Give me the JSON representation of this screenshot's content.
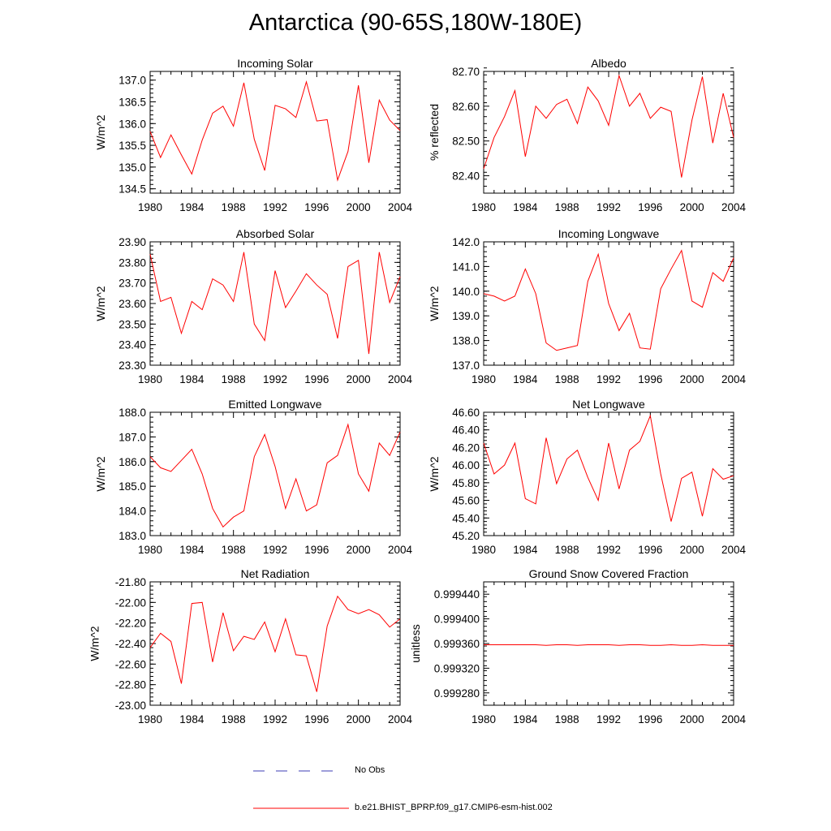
{
  "title": "Antarctica (90-65S,180W-180E)",
  "legend": {
    "items": [
      {
        "label": "No Obs",
        "style": "dashed",
        "color": "#3c3cb4"
      },
      {
        "label": "b.e21.BHIST_BPRP.f09_g17.CMIP6-esm-hist.002",
        "style": "solid",
        "color": "#ff0000"
      }
    ]
  },
  "chart_data": [
    {
      "type": "line",
      "title": "Incoming Solar",
      "ylabel": "W/m^2",
      "xlim": [
        1980,
        2004
      ],
      "ylim": [
        134.4,
        137.2
      ],
      "xticks": [
        "1980",
        "1984",
        "1988",
        "1992",
        "1996",
        "2000",
        "2004"
      ],
      "yticks": [
        "134.5",
        "135.0",
        "135.5",
        "136.0",
        "136.5",
        "137.0"
      ],
      "x": [
        1980,
        1981,
        1982,
        1983,
        1984,
        1985,
        1986,
        1987,
        1988,
        1989,
        1990,
        1991,
        1992,
        1993,
        1994,
        1995,
        1996,
        1997,
        1998,
        1999,
        2000,
        2001,
        2002,
        2003,
        2004
      ],
      "series": [
        {
          "name": "b.e21.BHIST_BPRP.f09_g17.CMIP6-esm-hist.002",
          "color": "#ff0000",
          "values": [
            135.82,
            135.22,
            135.74,
            135.28,
            134.84,
            135.62,
            136.24,
            136.4,
            135.94,
            136.94,
            135.64,
            134.92,
            136.42,
            136.34,
            136.14,
            136.96,
            136.06,
            136.09,
            134.7,
            135.36,
            136.88,
            135.1,
            136.54,
            136.08,
            135.84
          ]
        }
      ]
    },
    {
      "type": "line",
      "title": "Albedo",
      "ylabel": "% reflected",
      "xlim": [
        1980,
        2004
      ],
      "ylim": [
        82.35,
        82.7
      ],
      "xticks": [
        "1980",
        "1984",
        "1988",
        "1992",
        "1996",
        "2000",
        "2004"
      ],
      "yticks": [
        "82.40",
        "82.50",
        "82.60",
        "82.70"
      ],
      "x": [
        1980,
        1981,
        1982,
        1983,
        1984,
        1985,
        1986,
        1987,
        1988,
        1989,
        1990,
        1991,
        1992,
        1993,
        1994,
        1995,
        1996,
        1997,
        1998,
        1999,
        2000,
        2001,
        2002,
        2003,
        2004
      ],
      "series": [
        {
          "name": "b.e21.BHIST_BPRP.f09_g17.CMIP6-esm-hist.002",
          "color": "#ff0000",
          "values": [
            82.42,
            82.51,
            82.57,
            82.645,
            82.455,
            82.6,
            82.565,
            82.605,
            82.62,
            82.55,
            82.655,
            82.615,
            82.545,
            82.688,
            82.6,
            82.637,
            82.565,
            82.597,
            82.585,
            82.395,
            82.56,
            82.685,
            82.494,
            82.637,
            82.51
          ]
        }
      ]
    },
    {
      "type": "line",
      "title": "Absorbed Solar",
      "ylabel": "W/m^2",
      "xlim": [
        1980,
        2004
      ],
      "ylim": [
        23.3,
        23.9
      ],
      "xticks": [
        "1980",
        "1984",
        "1988",
        "1992",
        "1996",
        "2000",
        "2004"
      ],
      "yticks": [
        "23.30",
        "23.40",
        "23.50",
        "23.60",
        "23.70",
        "23.80",
        "23.90"
      ],
      "x": [
        1980,
        1981,
        1982,
        1983,
        1984,
        1985,
        1986,
        1987,
        1988,
        1989,
        1990,
        1991,
        1992,
        1993,
        1994,
        1995,
        1996,
        1997,
        1998,
        1999,
        2000,
        2001,
        2002,
        2003,
        2004
      ],
      "series": [
        {
          "name": "b.e21.BHIST_BPRP.f09_g17.CMIP6-esm-hist.002",
          "color": "#ff0000",
          "values": [
            23.84,
            23.61,
            23.63,
            23.455,
            23.61,
            23.57,
            23.72,
            23.69,
            23.61,
            23.85,
            23.5,
            23.42,
            23.76,
            23.58,
            23.66,
            23.745,
            23.69,
            23.645,
            23.43,
            23.78,
            23.81,
            23.355,
            23.85,
            23.605,
            23.73
          ]
        }
      ]
    },
    {
      "type": "line",
      "title": "Incoming Longwave",
      "ylabel": "W/m^2",
      "xlim": [
        1980,
        2004
      ],
      "ylim": [
        137.0,
        142.0
      ],
      "xticks": [
        "1980",
        "1984",
        "1988",
        "1992",
        "1996",
        "2000",
        "2004"
      ],
      "yticks": [
        "137.0",
        "138.0",
        "139.0",
        "140.0",
        "141.0",
        "142.0"
      ],
      "x": [
        1980,
        1981,
        1982,
        1983,
        1984,
        1985,
        1986,
        1987,
        1988,
        1989,
        1990,
        1991,
        1992,
        1993,
        1994,
        1995,
        1996,
        1997,
        1998,
        1999,
        2000,
        2001,
        2002,
        2003,
        2004
      ],
      "series": [
        {
          "name": "b.e21.BHIST_BPRP.f09_g17.CMIP6-esm-hist.002",
          "color": "#ff0000",
          "values": [
            139.9,
            139.8,
            139.6,
            139.8,
            140.9,
            139.9,
            137.9,
            137.6,
            137.7,
            137.8,
            140.4,
            141.5,
            139.5,
            138.4,
            139.1,
            137.7,
            137.65,
            140.1,
            140.9,
            141.65,
            139.6,
            139.35,
            140.75,
            140.4,
            141.35
          ]
        }
      ]
    },
    {
      "type": "line",
      "title": "Emitted Longwave",
      "ylabel": "W/m^2",
      "xlim": [
        1980,
        2004
      ],
      "ylim": [
        183.0,
        188.0
      ],
      "xticks": [
        "1980",
        "1984",
        "1988",
        "1992",
        "1996",
        "2000",
        "2004"
      ],
      "yticks": [
        "183.0",
        "184.0",
        "185.0",
        "186.0",
        "187.0",
        "188.0"
      ],
      "x": [
        1980,
        1981,
        1982,
        1983,
        1984,
        1985,
        1986,
        1987,
        1988,
        1989,
        1990,
        1991,
        1992,
        1993,
        1994,
        1995,
        1996,
        1997,
        1998,
        1999,
        2000,
        2001,
        2002,
        2003,
        2004
      ],
      "series": [
        {
          "name": "b.e21.BHIST_BPRP.f09_g17.CMIP6-esm-hist.002",
          "color": "#ff0000",
          "values": [
            186.2,
            185.75,
            185.6,
            186.05,
            186.5,
            185.5,
            184.1,
            183.35,
            183.75,
            184.0,
            186.2,
            187.1,
            185.8,
            184.1,
            185.3,
            184.0,
            184.25,
            185.95,
            186.25,
            187.5,
            185.5,
            184.8,
            186.75,
            186.25,
            187.2
          ]
        }
      ]
    },
    {
      "type": "line",
      "title": "Net Longwave",
      "ylabel": "W/m^2",
      "xlim": [
        1980,
        2004
      ],
      "ylim": [
        45.2,
        46.6
      ],
      "xticks": [
        "1980",
        "1984",
        "1988",
        "1992",
        "1996",
        "2000",
        "2004"
      ],
      "yticks": [
        "45.20",
        "45.40",
        "45.60",
        "45.80",
        "46.00",
        "46.20",
        "46.40",
        "46.60"
      ],
      "x": [
        1980,
        1981,
        1982,
        1983,
        1984,
        1985,
        1986,
        1987,
        1988,
        1989,
        1990,
        1991,
        1992,
        1993,
        1994,
        1995,
        1996,
        1997,
        1998,
        1999,
        2000,
        2001,
        2002,
        2003,
        2004
      ],
      "series": [
        {
          "name": "b.e21.BHIST_BPRP.f09_g17.CMIP6-esm-hist.002",
          "color": "#ff0000",
          "values": [
            46.25,
            45.9,
            46.0,
            46.25,
            45.62,
            45.56,
            46.31,
            45.79,
            46.07,
            46.17,
            45.86,
            45.6,
            46.25,
            45.73,
            46.17,
            46.27,
            46.56,
            45.9,
            45.36,
            45.85,
            45.92,
            45.42,
            45.96,
            45.84,
            45.88
          ]
        }
      ]
    },
    {
      "type": "line",
      "title": "Net Radiation",
      "ylabel": "W/m^2",
      "xlim": [
        1980,
        2004
      ],
      "ylim": [
        -23.0,
        -21.8
      ],
      "xticks": [
        "1980",
        "1984",
        "1988",
        "1992",
        "1996",
        "2000",
        "2004"
      ],
      "yticks": [
        "-23.00",
        "-22.80",
        "-22.60",
        "-22.40",
        "-22.20",
        "-22.00",
        "-21.80"
      ],
      "x": [
        1980,
        1981,
        1982,
        1983,
        1984,
        1985,
        1986,
        1987,
        1988,
        1989,
        1990,
        1991,
        1992,
        1993,
        1994,
        1995,
        1996,
        1997,
        1998,
        1999,
        2000,
        2001,
        2002,
        2003,
        2004
      ],
      "series": [
        {
          "name": "b.e21.BHIST_BPRP.f09_g17.CMIP6-esm-hist.002",
          "color": "#ff0000",
          "values": [
            -22.44,
            -22.3,
            -22.38,
            -22.79,
            -22.01,
            -22.0,
            -22.58,
            -22.1,
            -22.47,
            -22.33,
            -22.36,
            -22.19,
            -22.48,
            -22.16,
            -22.51,
            -22.52,
            -22.87,
            -22.23,
            -21.94,
            -22.07,
            -22.11,
            -22.07,
            -22.12,
            -22.24,
            -22.16
          ]
        }
      ]
    },
    {
      "type": "line",
      "title": "Ground Snow Covered Fraction",
      "ylabel": "unitless",
      "xlim": [
        1980,
        2004
      ],
      "ylim": [
        0.99926,
        0.99946
      ],
      "xticks": [
        "1980",
        "1984",
        "1988",
        "1992",
        "1996",
        "2000",
        "2004"
      ],
      "yticks": [
        "0.999280",
        "0.999320",
        "0.999360",
        "0.999400",
        "0.999440"
      ],
      "x": [
        1980,
        1981,
        1982,
        1983,
        1984,
        1985,
        1986,
        1987,
        1988,
        1989,
        1990,
        1991,
        1992,
        1993,
        1994,
        1995,
        1996,
        1997,
        1998,
        1999,
        2000,
        2001,
        2002,
        2003,
        2004
      ],
      "series": [
        {
          "name": "b.e21.BHIST_BPRP.f09_g17.CMIP6-esm-hist.002",
          "color": "#ff0000",
          "values": [
            0.999358,
            0.999358,
            0.999358,
            0.999358,
            0.999358,
            0.999358,
            0.999357,
            0.999358,
            0.999358,
            0.999357,
            0.999358,
            0.999358,
            0.999358,
            0.999357,
            0.999358,
            0.999358,
            0.999357,
            0.999357,
            0.999358,
            0.999357,
            0.999357,
            0.999358,
            0.999357,
            0.999357,
            0.999357
          ]
        }
      ]
    }
  ]
}
